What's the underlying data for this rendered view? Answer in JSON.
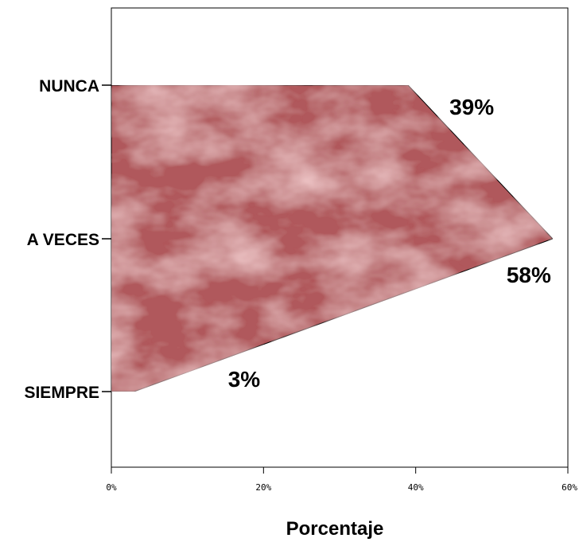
{
  "chart_data": {
    "type": "area",
    "orientation": "horizontal",
    "categories": [
      "NUNCA",
      "A VECES",
      "SIEMPRE"
    ],
    "values": [
      39,
      58,
      3
    ],
    "data_labels": [
      "39%",
      "58%",
      "3%"
    ],
    "xlabel": "Porcentaje",
    "x_ticks": [
      "0%",
      "20%",
      "40%",
      "60%"
    ],
    "xlim": [
      0,
      60
    ],
    "grid": false,
    "fill_color": "#b0585c",
    "fill_color_light": "#d88a8c",
    "fill_color_dark": "#8e3c40"
  }
}
